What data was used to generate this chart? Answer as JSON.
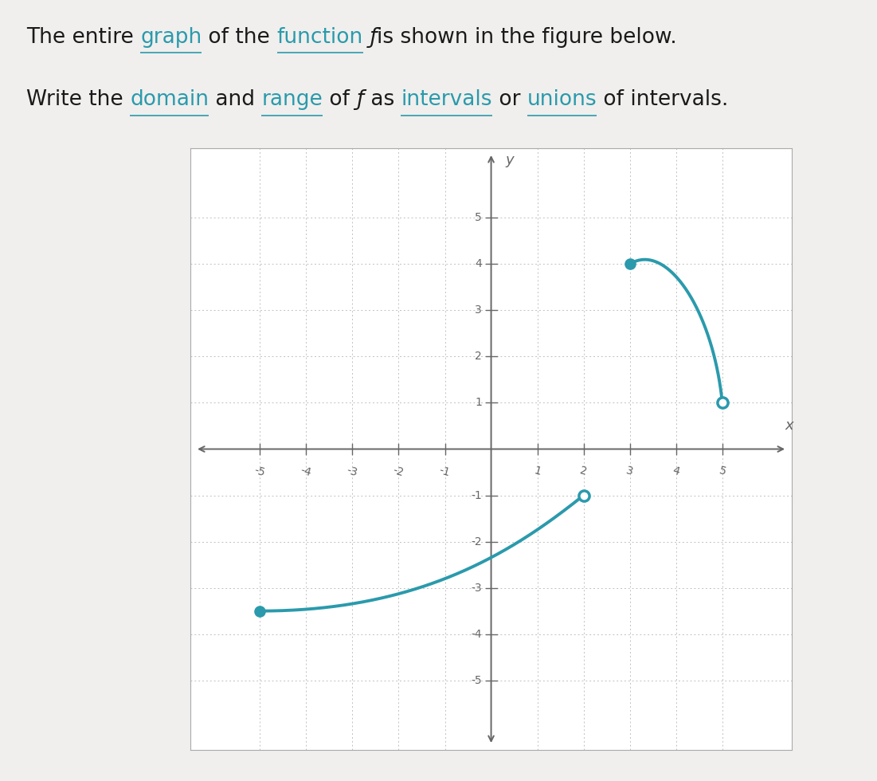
{
  "background_color": "#f0efed",
  "plot_bg_color": "#ffffff",
  "grid_color": "#c0c0c0",
  "curve_color": "#2a9aac",
  "axis_color": "#666666",
  "text_color": "#1a1a1a",
  "link_color": "#2a9aac",
  "xlim": [
    -6.5,
    6.5
  ],
  "ylim": [
    -6.5,
    6.5
  ],
  "xticks": [
    -5,
    -4,
    -3,
    -2,
    -1,
    1,
    2,
    3,
    4,
    5
  ],
  "yticks": [
    -5,
    -4,
    -3,
    -2,
    -1,
    1,
    2,
    3,
    4,
    5
  ],
  "segment1_bezier": [
    [
      -5,
      -3.5
    ],
    [
      -1.5,
      -3.5
    ],
    [
      0.5,
      -2.2
    ],
    [
      2,
      -1
    ]
  ],
  "segment1_start_closed": true,
  "segment1_end_closed": false,
  "segment2_bezier": [
    [
      3,
      4
    ],
    [
      3.8,
      4.5
    ],
    [
      4.8,
      3.0
    ],
    [
      5,
      1
    ]
  ],
  "segment2_start_closed": true,
  "segment2_end_closed": false,
  "fig_width": 11.01,
  "fig_height": 9.8,
  "header_text_parts_line1": [
    {
      "text": "The entire ",
      "color": "#1a1a1a",
      "underline": false,
      "italic": false
    },
    {
      "text": "graph",
      "color": "#2a9aac",
      "underline": true,
      "italic": false
    },
    {
      "text": " of the ",
      "color": "#1a1a1a",
      "underline": false,
      "italic": false
    },
    {
      "text": "function",
      "color": "#2a9aac",
      "underline": true,
      "italic": false
    },
    {
      "text": " ƒ",
      "color": "#1a1a1a",
      "underline": false,
      "italic": true
    },
    {
      "text": "is shown in the figure below.",
      "color": "#1a1a1a",
      "underline": false,
      "italic": false
    }
  ],
  "header_text_parts_line2": [
    {
      "text": "Write the ",
      "color": "#1a1a1a",
      "underline": false,
      "italic": false
    },
    {
      "text": "domain",
      "color": "#2a9aac",
      "underline": true,
      "italic": false
    },
    {
      "text": " and ",
      "color": "#1a1a1a",
      "underline": false,
      "italic": false
    },
    {
      "text": "range",
      "color": "#2a9aac",
      "underline": true,
      "italic": false
    },
    {
      "text": " of ",
      "color": "#1a1a1a",
      "underline": false,
      "italic": false
    },
    {
      "text": "ƒ",
      "color": "#1a1a1a",
      "underline": false,
      "italic": true
    },
    {
      "text": " as ",
      "color": "#1a1a1a",
      "underline": false,
      "italic": false
    },
    {
      "text": "intervals",
      "color": "#2a9aac",
      "underline": true,
      "italic": false
    },
    {
      "text": " or ",
      "color": "#1a1a1a",
      "underline": false,
      "italic": false
    },
    {
      "text": "unions",
      "color": "#2a9aac",
      "underline": true,
      "italic": false
    },
    {
      "text": " of intervals.",
      "color": "#1a1a1a",
      "underline": false,
      "italic": false
    }
  ]
}
